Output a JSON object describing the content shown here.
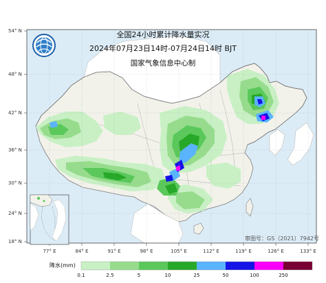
{
  "map": {
    "title": "全国24小时累计降水量实况",
    "time_range": "2024年07月23日14时-07月24日14时 BJT",
    "producer": "国家气象信息中心制",
    "approval_number": "审图号：GS（2021）7942号",
    "longitude_labels": [
      "77° E",
      "84° E",
      "91° E",
      "98° E",
      "105° E",
      "112° E",
      "119° E",
      "126° E",
      "133° E"
    ],
    "latitude_labels": [
      "54° N",
      "48° N",
      "42° N",
      "36° N",
      "30° N",
      "24° N",
      "18° N"
    ]
  },
  "legend": {
    "title": "降水(mm)",
    "values": [
      "0.1",
      "2.5",
      "5",
      "10",
      "25",
      "50",
      "100",
      "250"
    ],
    "colors": [
      "#c8f0c4",
      "#96dc8c",
      "#5ac85a",
      "#28a828",
      "#5ab4ff",
      "#1414e6",
      "#fa00fa",
      "#780032"
    ]
  },
  "colors": {
    "land": "#f2f2ea",
    "sea": "#dcecf7",
    "border": "#7a7a7a",
    "province_lines": "#b0b0b0"
  }
}
